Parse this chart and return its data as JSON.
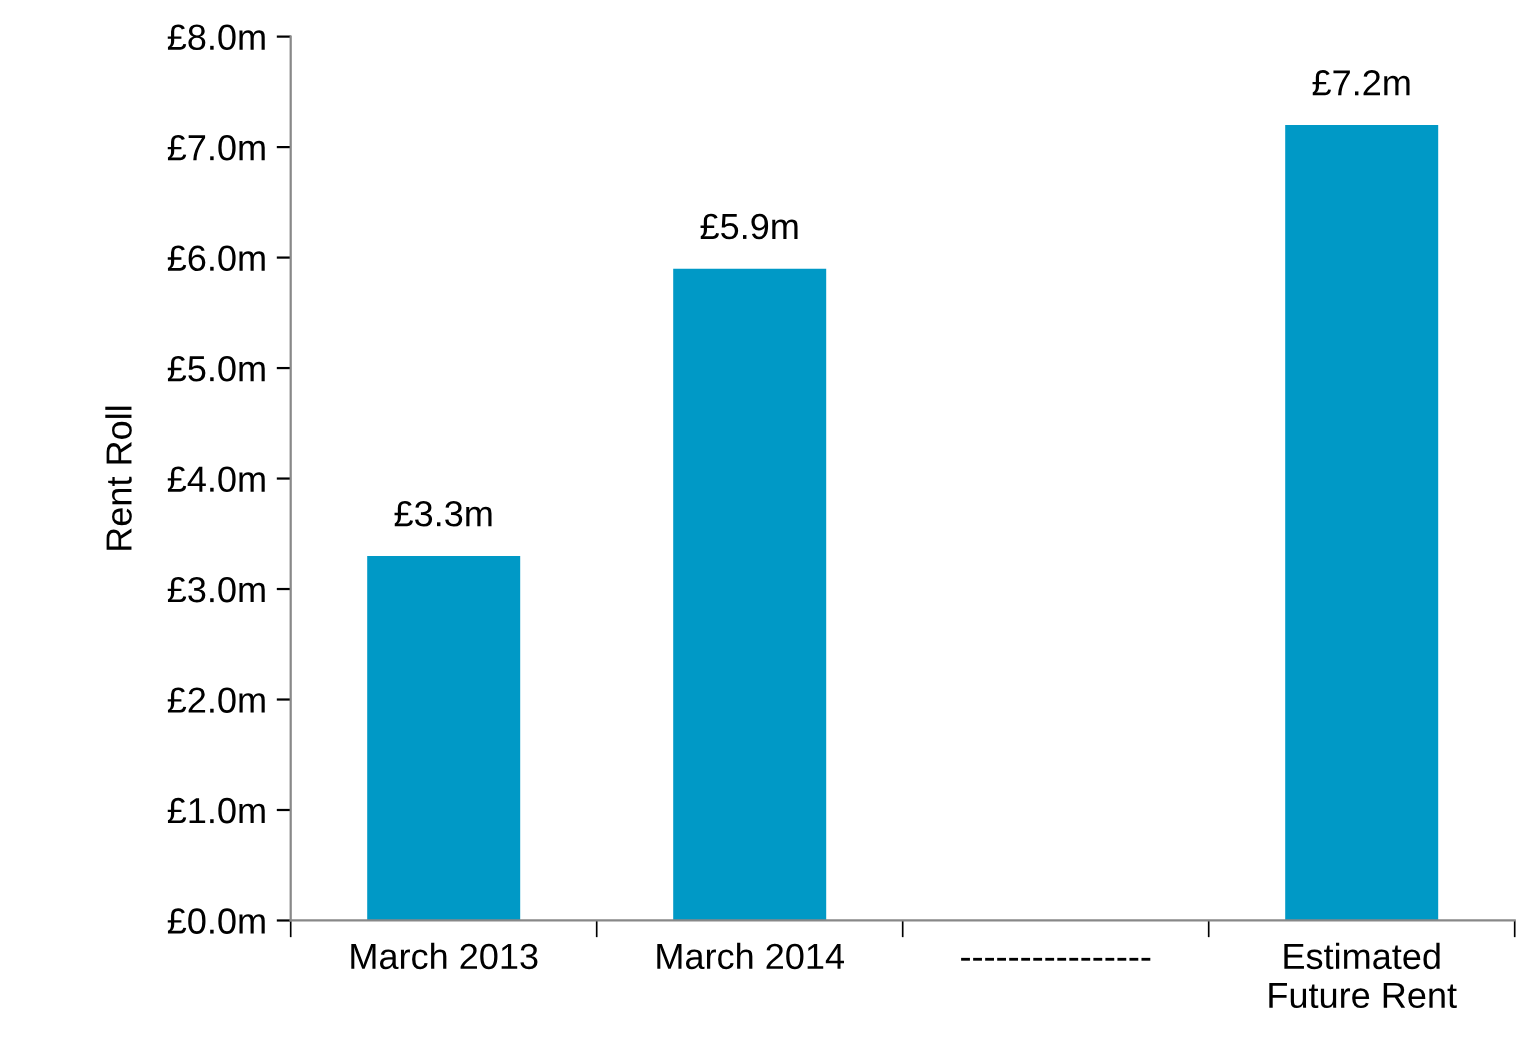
{
  "chart_data": {
    "type": "bar",
    "ylabel": "Rent Roll",
    "categories": [
      "March 2013",
      "March 2014",
      "----------------",
      "Estimated\nFuture Rent"
    ],
    "values": [
      3.3,
      5.9,
      null,
      7.2
    ],
    "value_labels": [
      "£3.3m",
      "£5.9m",
      null,
      "£7.2m"
    ],
    "color": "#0099c6",
    "ylim": [
      0,
      8
    ],
    "yticks": [
      {
        "value": 0,
        "label": "£0.0m"
      },
      {
        "value": 1,
        "label": "£1.0m"
      },
      {
        "value": 2,
        "label": "£2.0m"
      },
      {
        "value": 3,
        "label": "£3.0m"
      },
      {
        "value": 4,
        "label": "£4.0m"
      },
      {
        "value": 5,
        "label": "£5.0m"
      },
      {
        "value": 6,
        "label": "£6.0m"
      },
      {
        "value": 7,
        "label": "£7.0m"
      },
      {
        "value": 8,
        "label": "£8.0m"
      }
    ],
    "grid": false
  }
}
